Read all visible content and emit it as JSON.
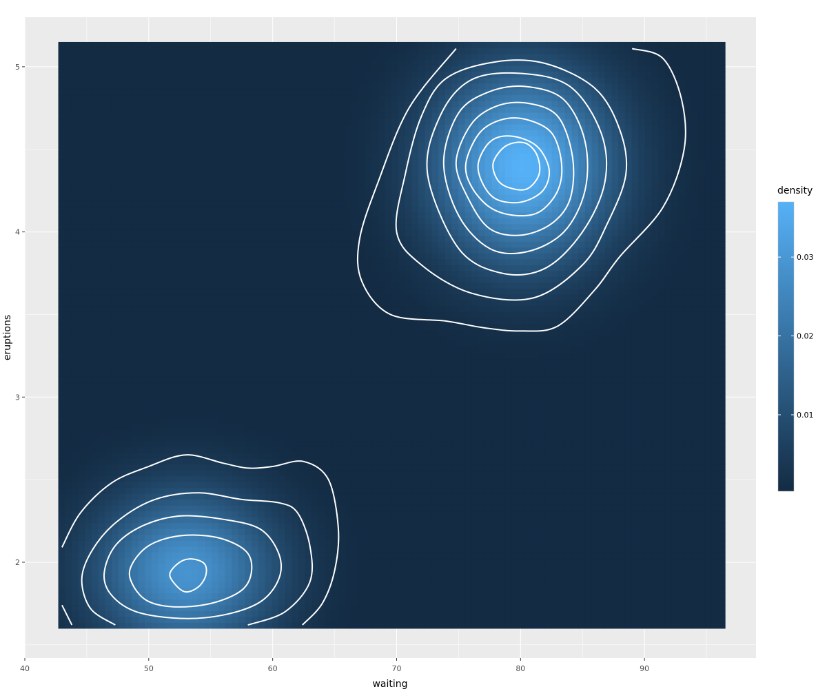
{
  "chart_data": {
    "type": "heatmap",
    "title": "",
    "xlabel": "waiting",
    "ylabel": "eruptions",
    "xlim": [
      40,
      99
    ],
    "ylim": [
      1.42,
      5.3
    ],
    "x_ticks": [
      40,
      50,
      60,
      70,
      80,
      90
    ],
    "y_ticks": [
      2,
      3,
      4,
      5
    ],
    "x_tick_labels": [
      "40",
      "50",
      "60",
      "70",
      "80",
      "90"
    ],
    "y_tick_labels": [
      "2",
      "3",
      "4",
      "5"
    ],
    "grid": true,
    "raster_extent": {
      "x": [
        42.7,
        96.5
      ],
      "y": [
        1.6,
        5.15
      ]
    },
    "density_components": [
      {
        "mx": 80.2,
        "my": 4.4,
        "sx": 5.0,
        "sy": 0.4,
        "peak": 0.037
      },
      {
        "mx": 53.0,
        "my": 1.95,
        "sx": 5.0,
        "sy": 0.33,
        "peak": 0.029
      }
    ],
    "contour_stroke": "#ffffff",
    "contours": [
      [
        [
          74.8,
          5.11
        ],
        [
          71.0,
          4.75
        ],
        [
          68.5,
          4.3
        ],
        [
          67.0,
          3.95
        ],
        [
          67.2,
          3.7
        ],
        [
          69.5,
          3.5
        ],
        [
          74.0,
          3.46
        ],
        [
          77.0,
          3.42
        ],
        [
          80.0,
          3.4
        ],
        [
          83.0,
          3.43
        ],
        [
          86.0,
          3.65
        ],
        [
          88.0,
          3.85
        ],
        [
          91.5,
          4.15
        ],
        [
          93.2,
          4.5
        ],
        [
          93.0,
          4.8
        ],
        [
          91.5,
          5.05
        ],
        [
          89.0,
          5.11
        ]
      ],
      [
        [
          70.0,
          4.0
        ],
        [
          70.7,
          4.35
        ],
        [
          72.0,
          4.7
        ],
        [
          74.0,
          4.93
        ],
        [
          78.0,
          5.03
        ],
        [
          82.0,
          5.02
        ],
        [
          86.0,
          4.87
        ],
        [
          88.0,
          4.62
        ],
        [
          88.5,
          4.35
        ],
        [
          87.0,
          4.05
        ],
        [
          85.0,
          3.8
        ],
        [
          81.0,
          3.6
        ],
        [
          76.0,
          3.63
        ],
        [
          72.0,
          3.8
        ],
        [
          70.0,
          4.0
        ]
      ],
      [
        [
          72.5,
          4.35
        ],
        [
          73.5,
          4.7
        ],
        [
          76.0,
          4.92
        ],
        [
          80.0,
          4.96
        ],
        [
          84.0,
          4.88
        ],
        [
          86.5,
          4.6
        ],
        [
          86.8,
          4.3
        ],
        [
          85.0,
          4.0
        ],
        [
          82.0,
          3.78
        ],
        [
          78.5,
          3.75
        ],
        [
          75.0,
          3.9
        ],
        [
          72.5,
          4.35
        ]
      ],
      [
        [
          73.8,
          4.42
        ],
        [
          75.0,
          4.72
        ],
        [
          77.5,
          4.85
        ],
        [
          80.5,
          4.88
        ],
        [
          83.5,
          4.8
        ],
        [
          85.2,
          4.55
        ],
        [
          85.2,
          4.25
        ],
        [
          83.5,
          4.0
        ],
        [
          80.5,
          3.88
        ],
        [
          77.5,
          3.9
        ],
        [
          75.0,
          4.1
        ],
        [
          73.8,
          4.42
        ]
      ],
      [
        [
          74.8,
          4.42
        ],
        [
          76.0,
          4.65
        ],
        [
          78.0,
          4.76
        ],
        [
          80.5,
          4.78
        ],
        [
          83.0,
          4.7
        ],
        [
          84.2,
          4.45
        ],
        [
          84.0,
          4.2
        ],
        [
          82.5,
          4.05
        ],
        [
          80.0,
          3.98
        ],
        [
          77.5,
          4.02
        ],
        [
          75.8,
          4.2
        ],
        [
          74.8,
          4.42
        ]
      ],
      [
        [
          75.6,
          4.42
        ],
        [
          76.7,
          4.6
        ],
        [
          78.5,
          4.68
        ],
        [
          80.5,
          4.68
        ],
        [
          82.5,
          4.6
        ],
        [
          83.3,
          4.42
        ],
        [
          83.0,
          4.25
        ],
        [
          81.5,
          4.12
        ],
        [
          79.5,
          4.1
        ],
        [
          77.5,
          4.15
        ],
        [
          76.0,
          4.28
        ],
        [
          75.6,
          4.42
        ]
      ],
      [
        [
          76.6,
          4.42
        ],
        [
          77.6,
          4.55
        ],
        [
          79.3,
          4.58
        ],
        [
          81.3,
          4.52
        ],
        [
          82.3,
          4.38
        ],
        [
          81.8,
          4.25
        ],
        [
          80.0,
          4.18
        ],
        [
          78.0,
          4.2
        ],
        [
          76.9,
          4.3
        ],
        [
          76.6,
          4.42
        ]
      ],
      [
        [
          77.8,
          4.42
        ],
        [
          78.8,
          4.52
        ],
        [
          80.3,
          4.54
        ],
        [
          81.3,
          4.47
        ],
        [
          81.5,
          4.35
        ],
        [
          80.5,
          4.26
        ],
        [
          79.0,
          4.27
        ],
        [
          78.1,
          4.32
        ],
        [
          77.8,
          4.42
        ]
      ],
      [
        [
          43.0,
          2.09
        ],
        [
          44.5,
          2.3
        ],
        [
          47.0,
          2.48
        ],
        [
          50.0,
          2.58
        ],
        [
          53.0,
          2.65
        ],
        [
          56.0,
          2.6
        ],
        [
          58.0,
          2.57
        ],
        [
          60.0,
          2.58
        ],
        [
          62.5,
          2.61
        ],
        [
          64.5,
          2.5
        ],
        [
          65.3,
          2.2
        ],
        [
          65.0,
          1.95
        ],
        [
          64.0,
          1.75
        ],
        [
          62.4,
          1.62
        ]
      ],
      [
        [
          43.0,
          1.74
        ],
        [
          43.8,
          1.62
        ]
      ],
      [
        [
          47.3,
          1.62
        ],
        [
          45.3,
          1.72
        ],
        [
          44.6,
          1.9
        ],
        [
          45.5,
          2.08
        ],
        [
          47.5,
          2.25
        ],
        [
          50.5,
          2.38
        ],
        [
          54.0,
          2.42
        ],
        [
          57.5,
          2.38
        ],
        [
          60.5,
          2.36
        ],
        [
          62.0,
          2.3
        ],
        [
          63.0,
          2.1
        ],
        [
          63.0,
          1.88
        ],
        [
          61.0,
          1.7
        ],
        [
          58.0,
          1.62
        ]
      ],
      [
        [
          46.4,
          1.93
        ],
        [
          47.3,
          2.1
        ],
        [
          49.5,
          2.22
        ],
        [
          52.5,
          2.28
        ],
        [
          56.0,
          2.26
        ],
        [
          59.0,
          2.2
        ],
        [
          60.5,
          2.05
        ],
        [
          60.5,
          1.9
        ],
        [
          59.0,
          1.76
        ],
        [
          56.0,
          1.68
        ],
        [
          52.5,
          1.66
        ],
        [
          49.0,
          1.7
        ],
        [
          47.0,
          1.8
        ],
        [
          46.4,
          1.93
        ]
      ],
      [
        [
          48.6,
          1.98
        ],
        [
          50.0,
          2.1
        ],
        [
          52.5,
          2.16
        ],
        [
          55.5,
          2.15
        ],
        [
          57.8,
          2.07
        ],
        [
          58.3,
          1.95
        ],
        [
          57.5,
          1.83
        ],
        [
          55.0,
          1.75
        ],
        [
          52.0,
          1.73
        ],
        [
          49.8,
          1.77
        ],
        [
          48.6,
          1.88
        ],
        [
          48.6,
          1.98
        ]
      ],
      [
        [
          51.7,
          1.93
        ],
        [
          52.5,
          2.0
        ],
        [
          53.5,
          2.02
        ],
        [
          54.5,
          1.99
        ],
        [
          54.6,
          1.92
        ],
        [
          54.0,
          1.85
        ],
        [
          53.0,
          1.82
        ],
        [
          52.2,
          1.86
        ],
        [
          51.7,
          1.93
        ]
      ]
    ]
  },
  "legend": {
    "title": "density",
    "labels": [
      "0.01",
      "0.02",
      "0.03"
    ],
    "values": [
      0.01,
      0.02,
      0.03
    ],
    "range": [
      0.0003,
      0.037
    ],
    "low_color": "#132b43",
    "high_color": "#56b1f7"
  },
  "style": {
    "panel_background": "#ebebeb",
    "grid_major": "#ffffff",
    "page_background": "#ffffff"
  }
}
